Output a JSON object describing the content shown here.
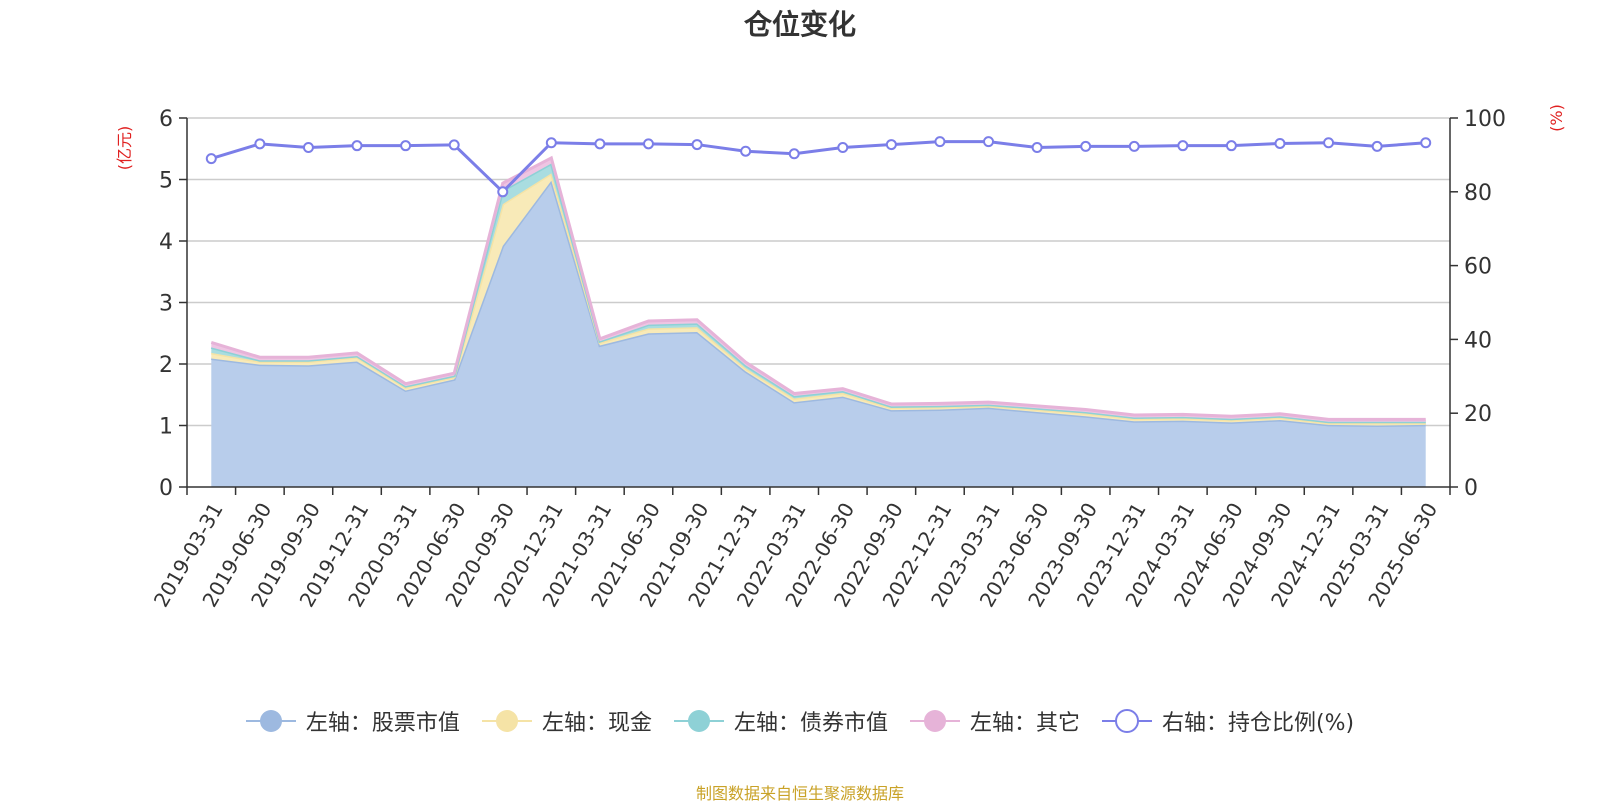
{
  "chart_data": {
    "type": "area",
    "title": "仓位变化",
    "left_axis_unit": "(亿元)",
    "right_axis_unit": "(%)",
    "left_ylim": [
      0,
      6
    ],
    "left_ticks": [
      "0",
      "1",
      "2",
      "3",
      "4",
      "5",
      "6"
    ],
    "right_ylim": [
      0,
      100
    ],
    "right_ticks": [
      "0",
      "20",
      "40",
      "60",
      "80",
      "100"
    ],
    "grid": true,
    "legend_position": "bottom",
    "categories": [
      "2019-03-31",
      "2019-06-30",
      "2019-09-30",
      "2019-12-31",
      "2020-03-31",
      "2020-06-30",
      "2020-09-30",
      "2020-12-31",
      "2021-03-31",
      "2021-06-30",
      "2021-09-30",
      "2021-12-31",
      "2022-03-31",
      "2022-06-30",
      "2022-09-30",
      "2022-12-31",
      "2023-03-31",
      "2023-06-30",
      "2023-09-30",
      "2023-12-31",
      "2024-03-31",
      "2024-06-30",
      "2024-09-30",
      "2024-12-31",
      "2025-03-31",
      "2025-06-30"
    ],
    "series": [
      {
        "name": "左轴：股票市值",
        "axis": "left",
        "stacked": true,
        "color": "#9db9e0",
        "fill": "#b8cdeb",
        "values": [
          2.09,
          1.99,
          1.98,
          2.04,
          1.57,
          1.75,
          3.92,
          4.98,
          2.3,
          2.5,
          2.52,
          1.88,
          1.38,
          1.47,
          1.25,
          1.26,
          1.29,
          1.22,
          1.15,
          1.07,
          1.08,
          1.05,
          1.09,
          1.01,
          1.0,
          1.01
        ]
      },
      {
        "name": "左轴：现金",
        "axis": "left",
        "stacked": true,
        "color": "#f5e3a6",
        "fill": "#f8eab8",
        "values": [
          0.09,
          0.05,
          0.06,
          0.07,
          0.05,
          0.04,
          0.68,
          0.12,
          0.05,
          0.08,
          0.08,
          0.05,
          0.06,
          0.06,
          0.04,
          0.04,
          0.03,
          0.04,
          0.05,
          0.04,
          0.04,
          0.04,
          0.04,
          0.03,
          0.04,
          0.03
        ]
      },
      {
        "name": "左轴：债券市值",
        "axis": "left",
        "stacked": true,
        "color": "#8ed1d6",
        "fill": "#a9dde0",
        "values": [
          0.09,
          0.02,
          0.02,
          0.02,
          0.02,
          0.02,
          0.22,
          0.16,
          0.02,
          0.06,
          0.06,
          0.05,
          0.04,
          0.03,
          0.02,
          0.02,
          0.02,
          0.02,
          0.02,
          0.02,
          0.02,
          0.02,
          0.02,
          0.02,
          0.02,
          0.02
        ]
      },
      {
        "name": "左轴：其它",
        "axis": "left",
        "stacked": true,
        "color": "#e6b3d8",
        "fill": "#eec5e3",
        "values": [
          0.08,
          0.05,
          0.05,
          0.05,
          0.04,
          0.04,
          0.12,
          0.09,
          0.04,
          0.06,
          0.06,
          0.05,
          0.04,
          0.04,
          0.04,
          0.04,
          0.04,
          0.04,
          0.04,
          0.04,
          0.04,
          0.04,
          0.04,
          0.04,
          0.04,
          0.04
        ]
      },
      {
        "name": "右轴：持仓比例(%)",
        "axis": "right",
        "type": "line",
        "color": "#7b7ee8",
        "values": [
          89,
          93,
          92,
          92.5,
          92.5,
          92.7,
          80,
          93.3,
          93,
          93,
          92.8,
          91,
          90.3,
          92,
          92.8,
          93.6,
          93.6,
          92,
          92.3,
          92.3,
          92.5,
          92.5,
          93.1,
          93.3,
          92.3,
          93.3
        ]
      }
    ]
  },
  "source_text": "制图数据来自恒生聚源数据库"
}
